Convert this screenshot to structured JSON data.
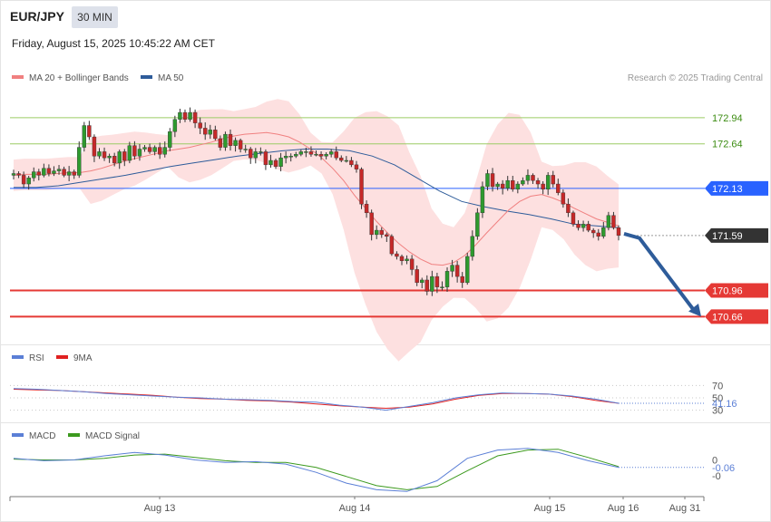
{
  "header": {
    "symbol": "EUR/JPY",
    "timeframe": "30 MIN",
    "datetime": "Friday, August 15, 2025 10:45:22 AM CET",
    "credit": "Research © 2025 Trading Central"
  },
  "legends": {
    "main": [
      {
        "label": "MA 20 + Bollinger Bands",
        "color": "#f08080"
      },
      {
        "label": "MA 50",
        "color": "#2e5c9a"
      }
    ],
    "rsi": [
      {
        "label": "RSI",
        "color": "#5b7fd6"
      },
      {
        "label": "9MA",
        "color": "#e02020"
      }
    ],
    "macd": [
      {
        "label": "MACD",
        "color": "#5b7fd6"
      },
      {
        "label": "MACD Signal",
        "color": "#3c9a1e"
      }
    ]
  },
  "colors": {
    "up": "#2e9a2e",
    "down": "#c62828",
    "band": "#fde0e0",
    "ma20": "#f08080",
    "ma50": "#2e5c9a",
    "resistance": "#9ccc65",
    "pivot": "#2962ff",
    "support": "#e53935",
    "last": "#333333",
    "arrow": "#2e5c9a"
  },
  "chart_data": [
    {
      "type": "candlestick",
      "ylim": [
        170.55,
        173.25
      ],
      "x_tick_labels": [
        "Aug 13",
        "Aug 14",
        "Aug 15",
        "Aug 16",
        "Aug 31"
      ],
      "levels": [
        {
          "value": 172.94,
          "label": "172.94",
          "kind": "resistance"
        },
        {
          "value": 172.64,
          "label": "172.64",
          "kind": "resistance"
        },
        {
          "value": 172.13,
          "label": "172.13",
          "kind": "pivot"
        },
        {
          "value": 171.59,
          "label": "171.59",
          "kind": "last"
        },
        {
          "value": 170.96,
          "label": "170.96",
          "kind": "support"
        },
        {
          "value": 170.66,
          "label": "170.66",
          "kind": "support"
        }
      ],
      "close": [
        172.3,
        172.28,
        172.18,
        172.25,
        172.32,
        172.28,
        172.36,
        172.3,
        172.33,
        172.35,
        172.28,
        172.32,
        172.28,
        172.6,
        172.85,
        172.72,
        172.5,
        172.55,
        172.48,
        172.5,
        172.42,
        172.55,
        172.45,
        172.62,
        172.5,
        172.58,
        172.6,
        172.55,
        172.6,
        172.52,
        172.6,
        172.78,
        172.92,
        173.0,
        172.92,
        173.0,
        172.88,
        172.82,
        172.75,
        172.8,
        172.7,
        172.6,
        172.75,
        172.62,
        172.68,
        172.58,
        172.58,
        172.48,
        172.55,
        172.55,
        172.4,
        172.45,
        172.38,
        172.48,
        172.5,
        172.5,
        172.52,
        172.55,
        172.55,
        172.52,
        172.52,
        172.5,
        172.52,
        172.55,
        172.48,
        172.45,
        172.45,
        172.4,
        172.35,
        171.95,
        171.85,
        171.6,
        171.65,
        171.6,
        171.58,
        171.38,
        171.35,
        171.3,
        171.32,
        171.2,
        171.05,
        171.08,
        170.95,
        171.12,
        171.0,
        171.0,
        171.18,
        171.25,
        171.12,
        171.05,
        171.35,
        171.58,
        171.85,
        172.15,
        172.3,
        172.15,
        172.18,
        172.13,
        172.22,
        172.12,
        172.18,
        172.22,
        172.28,
        172.22,
        172.18,
        172.12,
        172.28,
        172.18,
        172.08,
        171.95,
        171.85,
        171.72,
        171.68,
        171.72,
        171.65,
        171.62,
        171.58,
        171.68,
        171.82,
        171.68,
        171.59
      ],
      "ma20": [
        172.28,
        172.29,
        172.29,
        172.29,
        172.3,
        172.31,
        172.31,
        172.33,
        172.36,
        172.4,
        172.44,
        172.47,
        172.5,
        172.53,
        172.56,
        172.58,
        172.6,
        172.63,
        172.66,
        172.7,
        172.73,
        172.75,
        172.76,
        172.77,
        172.75,
        172.72,
        172.66,
        172.58,
        172.48,
        172.36,
        172.22,
        172.05,
        171.9,
        171.75,
        171.62,
        171.5,
        171.4,
        171.32,
        171.26,
        171.25,
        171.28,
        171.36,
        171.48,
        171.62,
        171.75,
        171.88,
        171.98,
        172.04,
        172.06,
        172.02,
        171.97,
        171.9,
        171.84,
        171.78,
        171.74,
        171.7
      ],
      "ma50": [
        172.14,
        172.14,
        172.16,
        172.2,
        172.24,
        172.28,
        172.33,
        172.38,
        172.42,
        172.46,
        172.5,
        172.53,
        172.56,
        172.58,
        172.58,
        172.56,
        172.5,
        172.4,
        172.25,
        172.1,
        171.98,
        171.92,
        171.87,
        171.83,
        171.78,
        171.72,
        171.7,
        171.68
      ]
    },
    {
      "type": "line",
      "name": "RSI",
      "ticks": [
        70,
        50,
        30
      ],
      "last": "41.16",
      "rsi": [
        65,
        64,
        62,
        60,
        57,
        55,
        53,
        51,
        50,
        48,
        47,
        46,
        44,
        43,
        38,
        35,
        30,
        36,
        42,
        50,
        55,
        58,
        57,
        56,
        53,
        48,
        41.16
      ],
      "ma9": [
        64,
        63,
        62,
        60,
        58,
        56,
        54,
        51,
        49,
        48,
        46,
        45,
        43,
        40,
        37,
        35,
        33,
        35,
        40,
        48,
        54,
        57,
        57,
        56,
        52,
        46,
        41.16
      ]
    },
    {
      "type": "line",
      "name": "MACD",
      "ticks": [
        "0",
        "-0"
      ],
      "last": "-0.06",
      "macd": [
        0.05,
        0.02,
        0.03,
        0.08,
        0.12,
        0.09,
        0.03,
        0.0,
        0.01,
        -0.02,
        -0.12,
        -0.25,
        -0.33,
        -0.35,
        -0.22,
        0.05,
        0.15,
        0.17,
        0.12,
        0.02,
        -0.06
      ],
      "signal": [
        0.04,
        0.03,
        0.03,
        0.05,
        0.09,
        0.1,
        0.06,
        0.02,
        0.0,
        0.0,
        -0.06,
        -0.17,
        -0.28,
        -0.33,
        -0.29,
        -0.1,
        0.08,
        0.15,
        0.16,
        0.06,
        -0.05
      ]
    }
  ]
}
